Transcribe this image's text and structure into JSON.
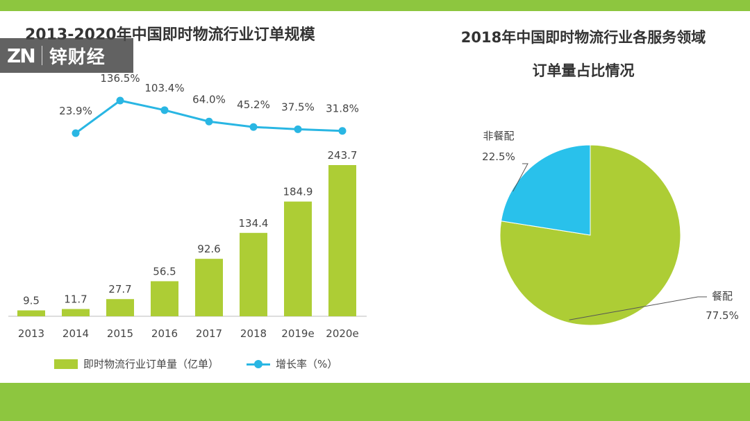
{
  "brand": {
    "mark": "ZN",
    "name": "锌财经"
  },
  "colors": {
    "bar": "#adcd35",
    "line": "#29b6e3",
    "band": "#8dc63f"
  },
  "chart_data": [
    {
      "type": "bar",
      "title": "2013-2020年中国即时物流行业订单规模",
      "categories": [
        "2013",
        "2014",
        "2015",
        "2016",
        "2017",
        "2018",
        "2019e",
        "2020e"
      ],
      "series": [
        {
          "name": "即时物流行业订单量（亿单）",
          "values": [
            9.5,
            11.7,
            27.7,
            56.5,
            92.6,
            134.4,
            184.9,
            243.7
          ],
          "labels": [
            "9.5",
            "11.7",
            "27.7",
            "56.5",
            "92.6",
            "134.4",
            "184.9",
            "243.7"
          ]
        },
        {
          "name": "增长率（%）",
          "type": "line",
          "values": [
            null,
            23.9,
            136.5,
            103.4,
            64.0,
            45.2,
            37.5,
            31.8
          ],
          "labels": [
            "",
            "23.9%",
            "136.5%",
            "103.4%",
            "64.0%",
            "45.2%",
            "37.5%",
            "31.8%"
          ]
        }
      ],
      "legend": "bottom"
    },
    {
      "type": "pie",
      "title": "2018年中国即时物流行业各服务领域订单量占比情况",
      "title_lines": [
        "2018年中国即时物流行业各服务领域",
        "订单量占比情况"
      ],
      "slices": [
        {
          "name": "餐配",
          "value": 77.5,
          "label": "77.5%",
          "color": "#adcd35"
        },
        {
          "name": "非餐配",
          "value": 22.5,
          "label": "22.5%",
          "color": "#29c1eb"
        }
      ]
    }
  ]
}
